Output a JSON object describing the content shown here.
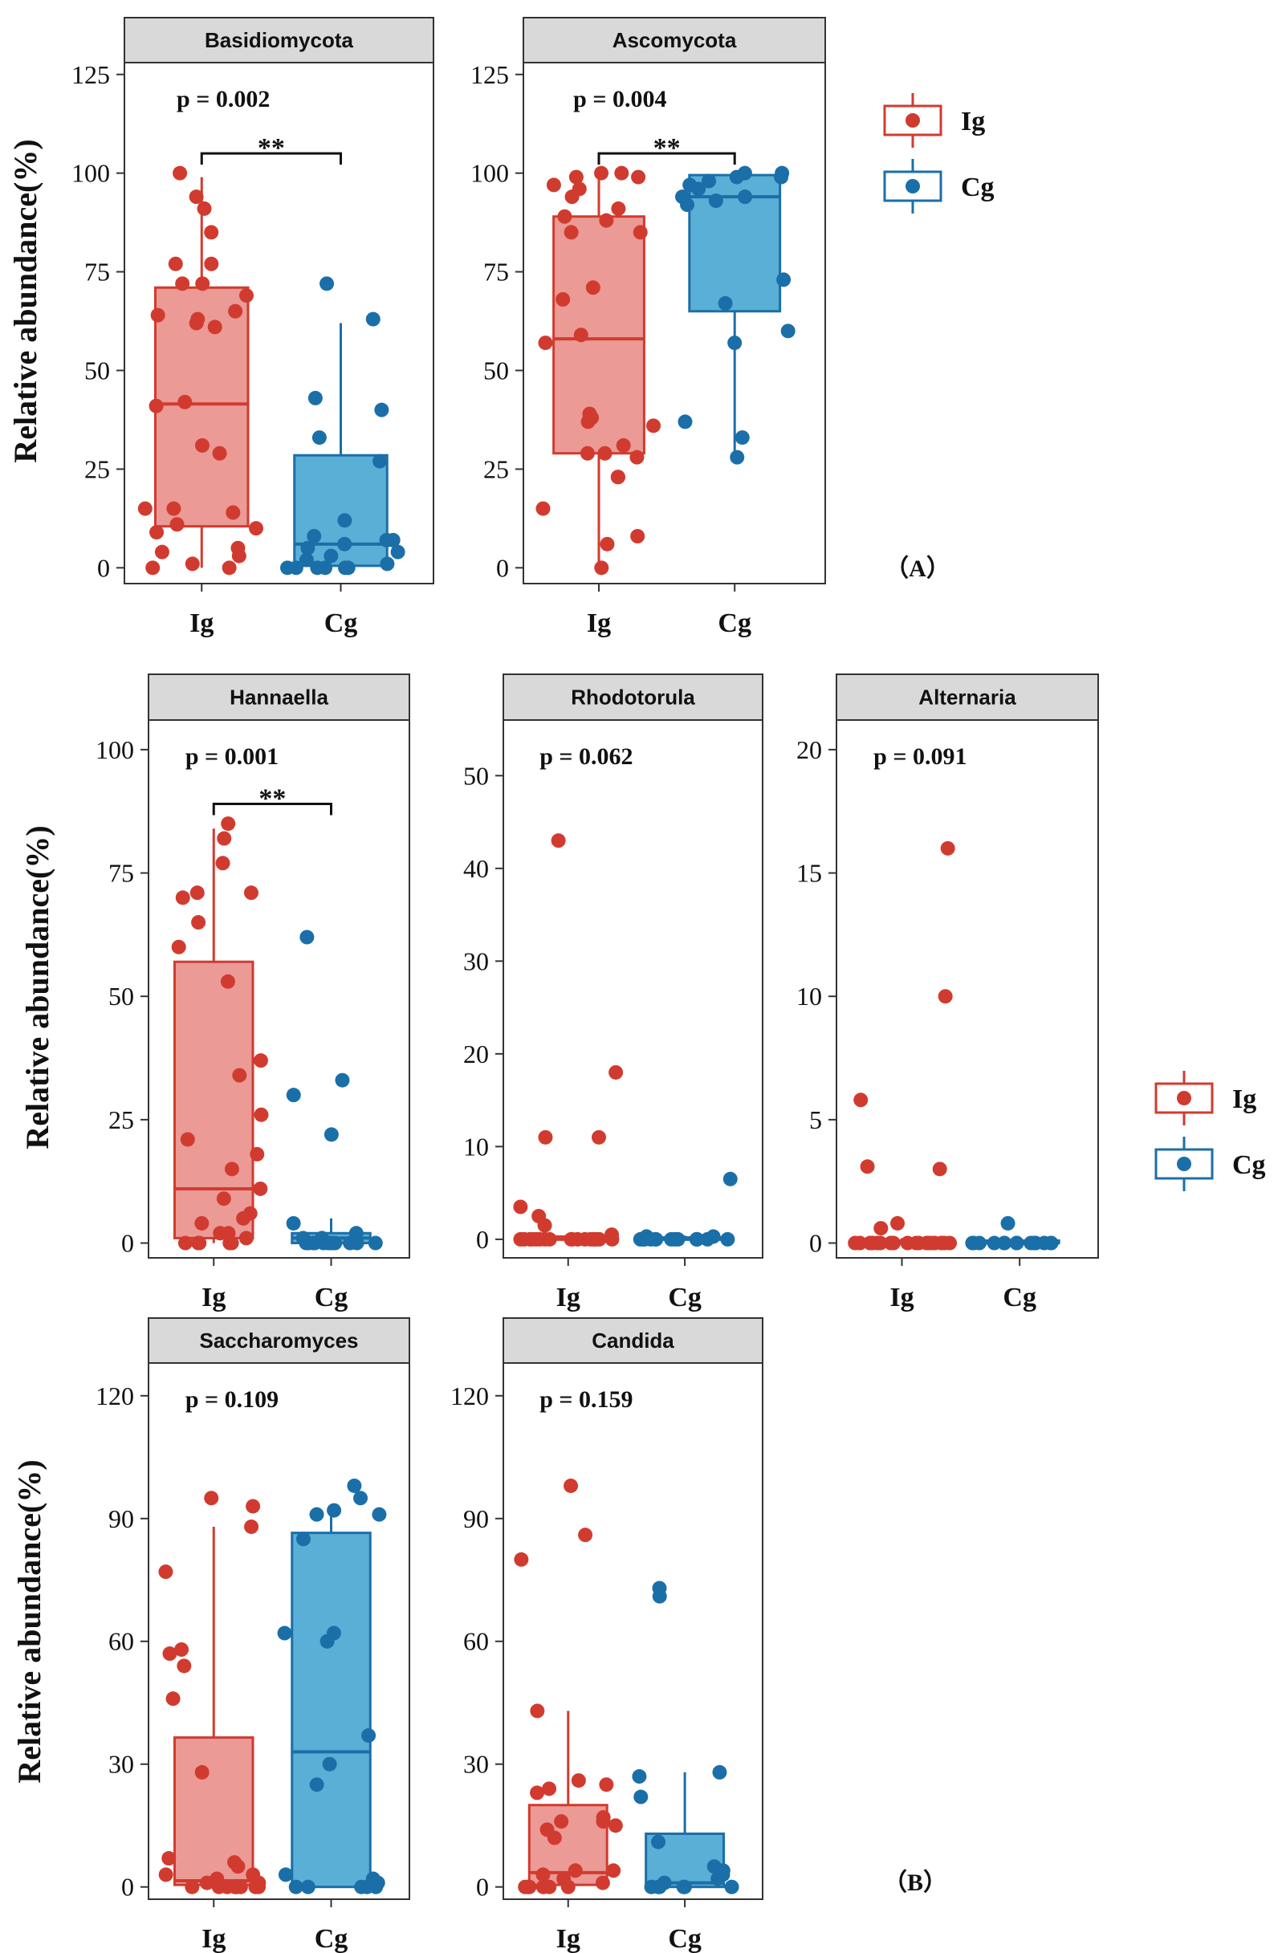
{
  "colors": {
    "ig": "#d13b2f",
    "ig_fill": "#eb9a96",
    "cg": "#1b6fa8",
    "cg_fill": "#5aafd6"
  },
  "y_axis_label": "Relative abundance(%)",
  "panel_labels": [
    "（A）",
    "（B）"
  ],
  "legend": {
    "items": [
      {
        "name": "Ig"
      },
      {
        "name": "Cg"
      }
    ]
  },
  "chart_data": [
    {
      "type": "box",
      "title": "Basidiomycota",
      "categories": [
        "Ig",
        "Cg"
      ],
      "ylim": [
        -4,
        128
      ],
      "yticks": [
        0,
        25,
        50,
        75,
        100,
        125
      ],
      "p_label": "p = 0.002",
      "sig": "**",
      "bracket_y": 105,
      "boxes": [
        {
          "min": 0,
          "q1": 10.5,
          "median": 41.5,
          "q3": 71,
          "max": 99,
          "points": [
            0,
            0,
            1,
            3,
            4,
            5,
            9,
            10,
            11,
            14,
            15,
            15,
            29,
            31,
            41,
            42,
            61,
            62,
            63,
            64,
            65,
            69,
            72,
            72,
            77,
            77,
            85,
            91,
            94,
            100
          ]
        },
        {
          "min": 0,
          "q1": 0.5,
          "median": 6,
          "q3": 28.5,
          "max": 62,
          "points": [
            0,
            0,
            0,
            0,
            0,
            0,
            1,
            2,
            3,
            4,
            5,
            6,
            7,
            7,
            8,
            12,
            27,
            33,
            40,
            43,
            63,
            72
          ]
        }
      ]
    },
    {
      "type": "box",
      "title": "Ascomycota",
      "categories": [
        "Ig",
        "Cg"
      ],
      "ylim": [
        -4,
        128
      ],
      "yticks": [
        0,
        25,
        50,
        75,
        100,
        125
      ],
      "p_label": "p = 0.004",
      "sig": "**",
      "bracket_y": 105,
      "boxes": [
        {
          "min": 0,
          "q1": 29,
          "median": 58,
          "q3": 89,
          "max": 99,
          "points": [
            0,
            6,
            8,
            15,
            23,
            23,
            28,
            29,
            29,
            31,
            36,
            37,
            38,
            39,
            57,
            59,
            68,
            71,
            85,
            85,
            88,
            89,
            91,
            94,
            96,
            97,
            99,
            99,
            100,
            100
          ]
        },
        {
          "min": 28,
          "q1": 65,
          "median": 94,
          "q3": 99.5,
          "max": 100,
          "points": [
            28,
            33,
            37,
            57,
            60,
            67,
            73,
            92,
            93,
            94,
            94,
            96,
            97,
            98,
            99,
            99,
            100,
            100
          ]
        }
      ]
    },
    {
      "type": "box",
      "title": "Hannaella",
      "categories": [
        "Ig",
        "Cg"
      ],
      "ylim": [
        -3,
        106
      ],
      "yticks": [
        0,
        25,
        50,
        75,
        100
      ],
      "p_label": "p = 0.001",
      "sig": "**",
      "bracket_y": 89,
      "boxes": [
        {
          "min": 0,
          "q1": 1,
          "median": 11,
          "q3": 57,
          "max": 84,
          "points": [
            0,
            0,
            0,
            0,
            0,
            1,
            2,
            2,
            4,
            5,
            6,
            9,
            11,
            15,
            18,
            21,
            26,
            34,
            37,
            53,
            60,
            65,
            70,
            71,
            71,
            77,
            82,
            85
          ]
        },
        {
          "min": 0,
          "q1": 0,
          "median": 1,
          "q3": 2,
          "max": 5,
          "points": [
            0,
            0,
            0,
            0,
            0,
            0,
            0,
            0,
            0,
            0,
            0,
            0,
            1,
            1,
            2,
            4,
            22,
            30,
            33,
            62
          ]
        }
      ]
    },
    {
      "type": "box",
      "title": "Rhodotorula",
      "categories": [
        "Ig",
        "Cg"
      ],
      "ylim": [
        -2,
        56
      ],
      "yticks": [
        0,
        10,
        20,
        30,
        40,
        50
      ],
      "p_label": "p = 0.062",
      "boxes": [
        {
          "min": 0,
          "q1": 0,
          "median": 0,
          "q3": 0.3,
          "max": 0.5,
          "points": [
            0,
            0,
            0,
            0,
            0,
            0,
            0,
            0,
            0,
            0,
            0,
            0,
            0,
            0,
            0,
            0,
            0,
            0,
            0.5,
            1.5,
            2.5,
            3.5,
            11,
            11,
            18,
            43
          ]
        },
        {
          "min": 0,
          "q1": 0,
          "median": 0,
          "q3": 0.2,
          "max": 0.4,
          "points": [
            0,
            0,
            0,
            0,
            0,
            0,
            0,
            0,
            0,
            0,
            0,
            0,
            0,
            0,
            0,
            0.3,
            0.3,
            6.5
          ]
        }
      ]
    },
    {
      "type": "box",
      "title": "Alternaria",
      "categories": [
        "Ig",
        "Cg"
      ],
      "ylim": [
        -0.6,
        21.2
      ],
      "yticks": [
        0,
        5,
        10,
        15,
        20
      ],
      "p_label": "p = 0.091",
      "boxes": [
        {
          "min": 0,
          "q1": 0,
          "median": 0,
          "q3": 0.1,
          "max": 0.2,
          "points": [
            0,
            0,
            0,
            0,
            0,
            0,
            0,
            0,
            0,
            0,
            0,
            0,
            0,
            0,
            0,
            0,
            0,
            0,
            0,
            0,
            0.6,
            0.8,
            3,
            3.1,
            5.8,
            10,
            16
          ]
        },
        {
          "min": 0,
          "q1": 0,
          "median": 0,
          "q3": 0.1,
          "max": 0.2,
          "points": [
            0,
            0,
            0,
            0,
            0,
            0,
            0,
            0,
            0,
            0,
            0,
            0,
            0,
            0,
            0,
            0.8
          ]
        }
      ]
    },
    {
      "type": "box",
      "title": "Saccharomyces",
      "categories": [
        "Ig",
        "Cg"
      ],
      "ylim": [
        -3,
        128
      ],
      "yticks": [
        0,
        30,
        60,
        90,
        120
      ],
      "p_label": "p = 0.109",
      "boxes": [
        {
          "min": 0,
          "q1": 0.5,
          "median": 1.5,
          "q3": 36.5,
          "max": 88,
          "points": [
            0,
            0,
            0,
            0,
            0,
            0,
            0,
            0,
            0,
            1,
            1,
            2,
            3,
            3,
            5,
            6,
            7,
            28,
            46,
            54,
            57,
            58,
            77,
            88,
            93,
            95
          ]
        },
        {
          "min": 0,
          "q1": 0,
          "median": 33,
          "q3": 86.5,
          "max": 91,
          "points": [
            0,
            0,
            0,
            0,
            0,
            1,
            2,
            3,
            25,
            30,
            37,
            60,
            62,
            62,
            85,
            91,
            91,
            92,
            95,
            98
          ]
        }
      ]
    },
    {
      "type": "box",
      "title": "Candida",
      "categories": [
        "Ig",
        "Cg"
      ],
      "ylim": [
        -3,
        128
      ],
      "yticks": [
        0,
        30,
        60,
        90,
        120
      ],
      "p_label": "p = 0.159",
      "boxes": [
        {
          "min": 0,
          "q1": 0.5,
          "median": 3.5,
          "q3": 20,
          "max": 43,
          "points": [
            0,
            0,
            0,
            0,
            0,
            0,
            0,
            1,
            2,
            3,
            4,
            4,
            12,
            14,
            15,
            16,
            16,
            17,
            23,
            24,
            25,
            26,
            43,
            80,
            86,
            98
          ]
        },
        {
          "min": 0,
          "q1": 0,
          "median": 1,
          "q3": 13,
          "max": 28,
          "points": [
            0,
            0,
            0,
            0,
            0,
            0,
            1,
            2,
            3,
            4,
            5,
            11,
            22,
            27,
            28,
            71,
            73
          ]
        }
      ]
    }
  ]
}
